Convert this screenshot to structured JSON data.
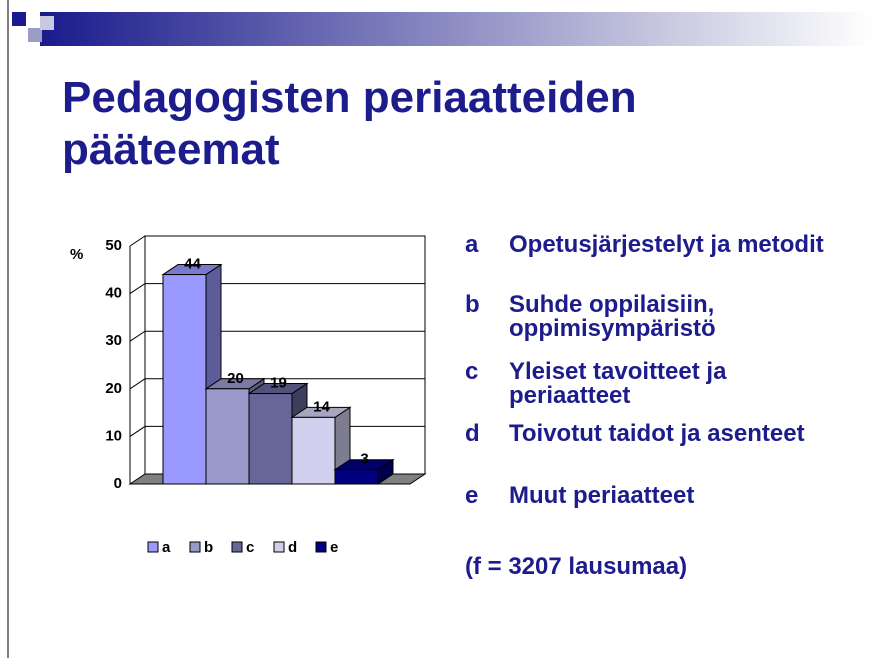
{
  "chart_data": {
    "type": "bar3d",
    "title": "Pedagogisten periaatteiden pääteemat",
    "y_label": "%",
    "categories": [
      "a",
      "b",
      "c",
      "d",
      "e"
    ],
    "values": [
      44,
      20,
      19,
      14,
      3
    ],
    "colors": [
      "#9999ff",
      "#9999cc",
      "#666699",
      "#d0d0ee",
      "#000080"
    ],
    "ylim": [
      0,
      50
    ],
    "yticks": [
      0,
      10,
      20,
      30,
      40,
      50
    ],
    "grid": true,
    "legend": "bottom"
  },
  "descriptions": [
    {
      "key": "a",
      "text": "Opetusjärjestelyt ja metodit"
    },
    {
      "key": "b",
      "text": "Suhde oppilaisiin, oppimisympäristö"
    },
    {
      "key": "c",
      "text": "Yleiset tavoitteet ja periaatteet"
    },
    {
      "key": "d",
      "text": "Toivotut taidot ja asenteet"
    },
    {
      "key": "e",
      "text": "Muut periaatteet"
    }
  ],
  "footnote": "(f = 3207 lausumaa)"
}
